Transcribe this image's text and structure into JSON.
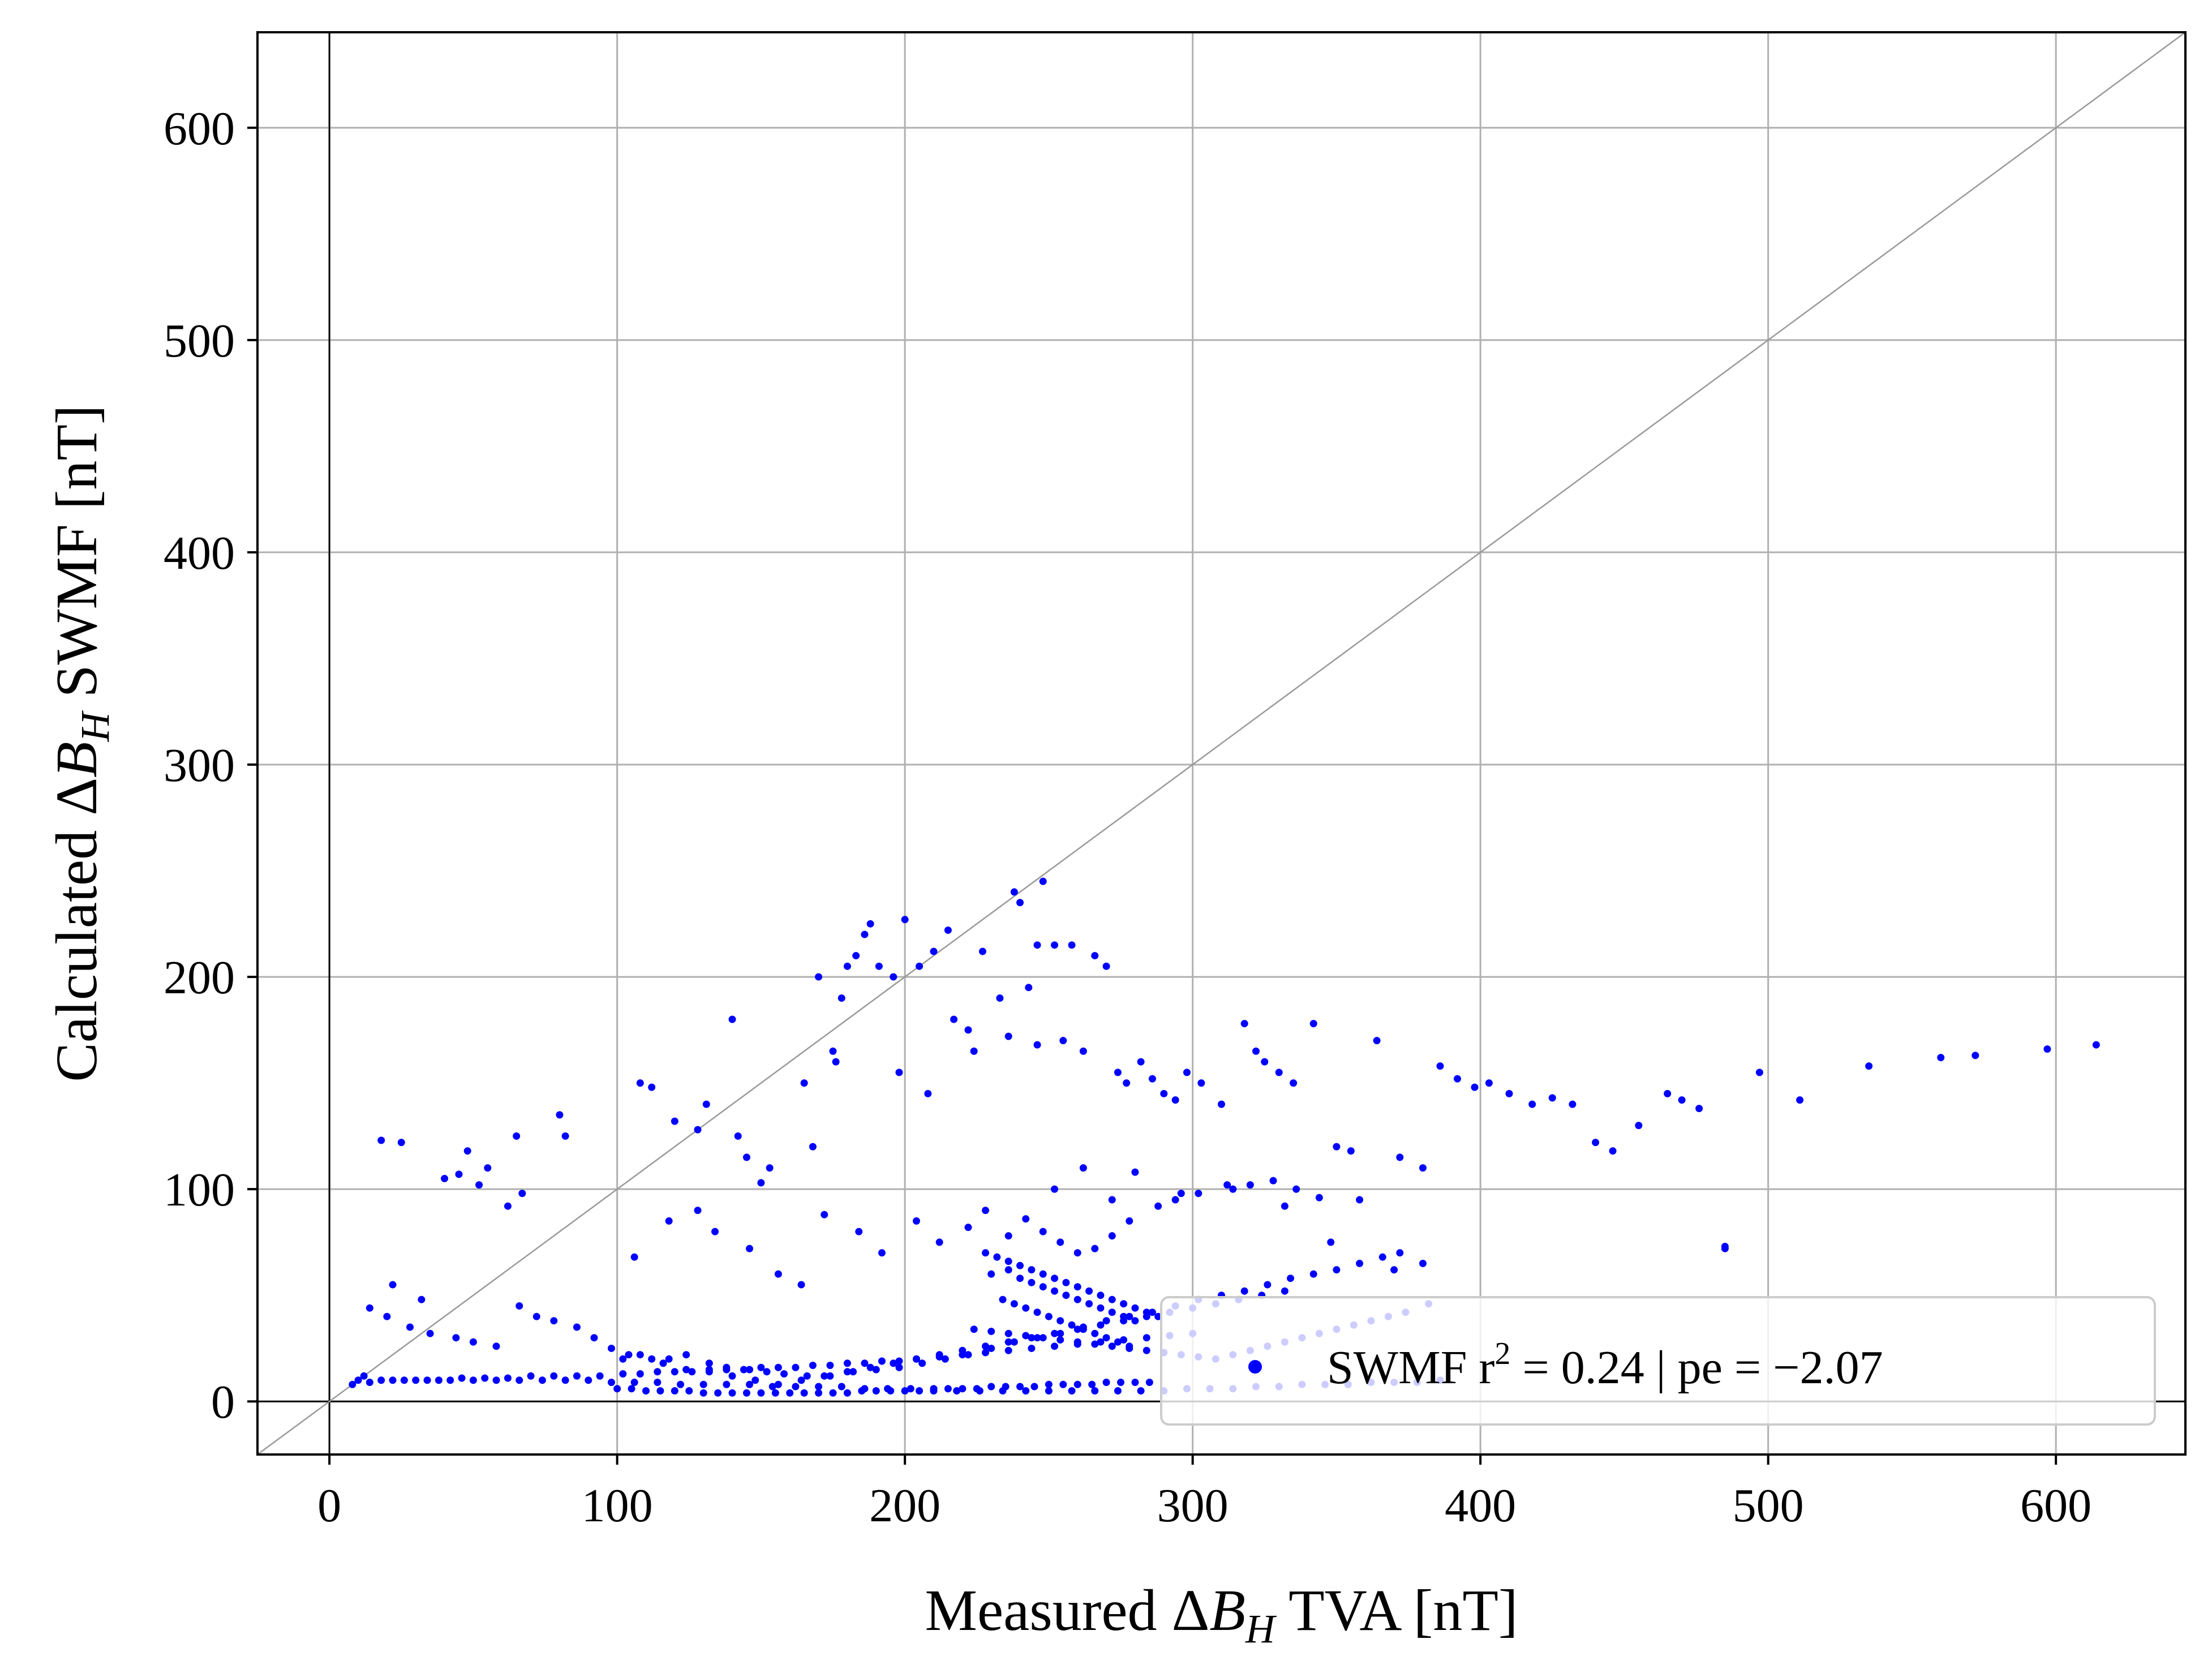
{
  "chart_data": {
    "type": "scatter",
    "xlabel": {
      "pre": "Measured ",
      "delta": "Δ",
      "sym": "B",
      "sub": "H",
      "post": " TVA [nT]"
    },
    "ylabel": {
      "pre": "Calculated ",
      "delta": "Δ",
      "sym": "B",
      "sub": "H",
      "post": " SWMF [nT]"
    },
    "xlim": [
      -25,
      645
    ],
    "ylim": [
      -25,
      645
    ],
    "xticks": [
      0,
      100,
      200,
      300,
      400,
      500,
      600
    ],
    "yticks": [
      0,
      100,
      200,
      300,
      400,
      500,
      600
    ],
    "xtick_labels": [
      "0",
      "100",
      "200",
      "300",
      "400",
      "500",
      "600"
    ],
    "ytick_labels": [
      "0",
      "100",
      "200",
      "300",
      "400",
      "500",
      "600"
    ],
    "grid": true,
    "reference_line": "y = x",
    "zero_lines": true,
    "legend": {
      "placement": "lower-right",
      "label_prefix": "SWMF r",
      "label_sup": "2",
      "label_suffix": " = 0.24 | pe = −2.07"
    },
    "colors": {
      "series": "#0000ff",
      "grid": "#b0b0b0",
      "diagonal": "#999999",
      "axes": "#000000"
    },
    "series": [
      {
        "marker": "dot",
        "x": [
          18,
          25,
          22,
          32,
          48,
          52,
          62,
          65,
          67,
          80,
          82,
          40,
          45,
          55,
          108,
          112,
          120,
          128,
          131,
          142,
          150,
          153,
          165,
          168,
          170,
          176,
          180,
          183,
          186,
          188,
          191,
          196,
          200,
          205,
          210,
          215,
          217,
          222,
          227,
          233,
          238,
          240,
          243,
          246,
          248,
          252,
          255,
          258,
          262,
          266,
          270,
          274,
          277,
          282,
          286,
          290,
          294,
          298,
          303,
          310,
          318,
          322,
          325,
          330,
          335,
          342,
          350,
          355,
          364,
          372,
          380,
          386,
          392,
          398,
          403,
          410,
          418,
          425,
          432,
          440,
          446,
          455,
          465,
          470,
          476,
          485,
          497,
          511,
          535,
          560,
          572,
          597,
          614,
          140,
          145,
          175,
          178,
          198,
          208,
          224,
          236,
          246,
          252,
          262,
          272,
          280,
          296,
          312,
          332,
          348,
          370,
          12,
          14,
          20,
          28,
          35,
          44,
          50,
          58,
          66,
          72,
          78,
          86,
          92,
          98,
          104,
          112,
          118,
          124,
          132,
          138,
          146,
          152,
          158,
          166,
          174,
          182,
          190,
          198,
          206,
          214,
          222,
          230,
          238,
          246,
          254,
          262,
          270,
          278,
          286,
          294,
          302,
          310,
          318,
          326,
          334,
          342,
          350,
          358,
          366,
          372,
          380,
          8,
          14,
          22,
          30,
          38,
          46,
          54,
          62,
          70,
          78,
          86,
          94,
          102,
          108,
          114,
          120,
          126,
          132,
          138,
          144,
          150,
          156,
          162,
          168,
          174,
          180,
          186,
          192,
          198,
          204,
          212,
          220,
          228,
          236,
          244,
          252,
          260,
          268,
          276,
          284,
          292,
          300,
          10,
          18,
          26,
          34,
          42,
          50,
          58,
          66,
          74,
          82,
          90,
          98,
          106,
          114,
          122,
          130,
          138,
          146,
          154,
          162,
          170,
          178,
          186,
          194,
          202,
          210,
          218,
          226,
          234,
          242,
          250,
          258,
          266,
          274,
          282,
          290,
          298,
          306,
          314,
          322,
          330,
          338,
          346,
          354,
          362,
          370,
          378,
          386,
          100,
          105,
          110,
          115,
          120,
          125,
          130,
          135,
          140,
          145,
          150,
          155,
          160,
          165,
          170,
          175,
          180,
          185,
          190,
          195,
          200,
          205,
          210,
          215,
          220,
          225,
          230,
          235,
          240,
          245,
          250,
          255,
          260,
          265,
          270,
          275,
          280,
          285,
          102,
          108,
          116,
          124,
          132,
          140,
          148,
          156,
          164,
          172,
          180,
          188,
          196,
          204,
          212,
          220,
          228,
          236,
          244,
          252,
          260,
          268,
          276,
          284,
          292,
          300,
          308,
          316,
          324,
          332,
          106,
          118,
          128,
          134,
          146,
          156,
          164,
          172,
          184,
          192,
          204,
          212,
          222,
          228,
          236,
          242,
          248,
          254,
          260,
          266,
          272,
          278,
          288,
          294,
          302,
          314,
          320,
          328,
          336,
          344,
          358,
          485,
          230,
          236,
          240,
          244,
          248,
          252,
          256,
          260,
          264,
          268,
          272,
          276,
          280,
          234,
          238,
          242,
          246,
          250,
          254,
          258,
          262,
          266,
          270,
          274,
          278,
          228,
          232,
          236,
          240,
          244,
          248,
          252,
          256,
          260,
          264,
          268,
          272,
          276,
          280,
          284,
          288,
          224,
          230,
          236,
          242,
          248,
          254,
          260,
          266,
          272,
          278,
          284,
          290,
          296,
          302,
          308,
          314,
          320,
          326,
          332,
          338,
          344,
          350,
          356,
          362,
          368,
          374,
          382
        ],
        "y": [
          123,
          122,
          55,
          48,
          118,
          102,
          92,
          125,
          98,
          135,
          125,
          105,
          107,
          110,
          150,
          148,
          132,
          128,
          140,
          125,
          103,
          110,
          150,
          120,
          200,
          160,
          205,
          210,
          220,
          225,
          205,
          200,
          227,
          205,
          212,
          222,
          180,
          175,
          212,
          190,
          240,
          235,
          195,
          215,
          245,
          215,
          170,
          215,
          165,
          210,
          205,
          155,
          150,
          160,
          152,
          145,
          142,
          155,
          150,
          140,
          178,
          165,
          160,
          155,
          150,
          178,
          120,
          118,
          170,
          115,
          110,
          158,
          152,
          148,
          150,
          145,
          140,
          143,
          140,
          122,
          118,
          130,
          145,
          142,
          138,
          72,
          155,
          142,
          158,
          162,
          163,
          166,
          168,
          180,
          115,
          165,
          190,
          155,
          145,
          165,
          172,
          168,
          100,
          110,
          95,
          108,
          98,
          102,
          92,
          75,
          62,
          12,
          44,
          40,
          35,
          32,
          30,
          28,
          26,
          45,
          40,
          38,
          35,
          30,
          25,
          22,
          20,
          20,
          22,
          18,
          16,
          15,
          14,
          13,
          12,
          12,
          14,
          15,
          16,
          18,
          20,
          22,
          25,
          28,
          30,
          32,
          35,
          38,
          40,
          42,
          45,
          48,
          50,
          52,
          55,
          58,
          60,
          62,
          65,
          68,
          70,
          65,
          8,
          9,
          10,
          10,
          10,
          11,
          11,
          11,
          12,
          12,
          12,
          12,
          13,
          13,
          14,
          14,
          14,
          15,
          15,
          15,
          16,
          16,
          16,
          17,
          17,
          18,
          18,
          19,
          19,
          20,
          21,
          22,
          23,
          24,
          25,
          26,
          27,
          28,
          29,
          30,
          31,
          32,
          10,
          10,
          10,
          10,
          10,
          10,
          10,
          10,
          10,
          10,
          10,
          9,
          9,
          9,
          8,
          8,
          8,
          8,
          7,
          7,
          7,
          7,
          6,
          6,
          6,
          5,
          5,
          5,
          5,
          5,
          5,
          5,
          5,
          5,
          5,
          5,
          6,
          6,
          6,
          7,
          7,
          8,
          8,
          8,
          9,
          9,
          9,
          10,
          6,
          6,
          5,
          5,
          5,
          5,
          4,
          4,
          4,
          4,
          4,
          4,
          4,
          4,
          4,
          4,
          4,
          5,
          5,
          5,
          5,
          5,
          6,
          6,
          6,
          6,
          7,
          7,
          7,
          7,
          8,
          8,
          8,
          8,
          9,
          9,
          9,
          9,
          20,
          22,
          18,
          15,
          14,
          12,
          10,
          8,
          10,
          12,
          14,
          16,
          18,
          20,
          22,
          24,
          26,
          28,
          30,
          32,
          34,
          36,
          38,
          40,
          42,
          44,
          46,
          48,
          50,
          52,
          68,
          85,
          90,
          80,
          72,
          60,
          55,
          88,
          80,
          70,
          85,
          75,
          82,
          90,
          78,
          86,
          80,
          75,
          70,
          72,
          78,
          85,
          92,
          95,
          98,
          100,
          102,
          104,
          100,
          96,
          95,
          73,
          60,
          62,
          58,
          56,
          54,
          52,
          50,
          48,
          46,
          44,
          42,
          40,
          38,
          48,
          46,
          44,
          42,
          40,
          38,
          36,
          34,
          32,
          30,
          28,
          26,
          70,
          68,
          66,
          64,
          62,
          60,
          58,
          56,
          54,
          52,
          50,
          48,
          46,
          44,
          42,
          40,
          34,
          33,
          32,
          31,
          30,
          29,
          28,
          27,
          26,
          25,
          24,
          23,
          22,
          21,
          20,
          22,
          24,
          26,
          28,
          30,
          32,
          34,
          36,
          38,
          40,
          42,
          46
        ]
      }
    ]
  }
}
